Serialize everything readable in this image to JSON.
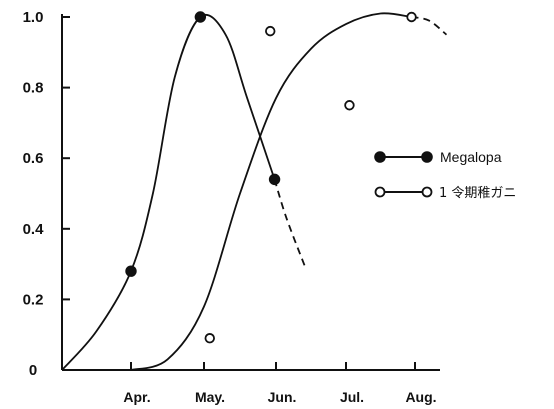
{
  "chart_data": {
    "type": "line",
    "categories": [
      "Apr.",
      "May.",
      "Jun.",
      "Jul.",
      "Aug."
    ],
    "ylim": [
      0,
      1.0
    ],
    "yticks": [
      {
        "value": 0,
        "label": "0"
      },
      {
        "value": 0.2,
        "label": "0.2"
      },
      {
        "value": 0.4,
        "label": "0.4"
      },
      {
        "value": 0.6,
        "label": "0.6"
      },
      {
        "value": 0.8,
        "label": "0.8"
      },
      {
        "value": 1.0,
        "label": "1.0"
      }
    ],
    "grid": false,
    "legend_position": "right",
    "series": [
      {
        "name": "Megalopa",
        "marker": "filled-circle",
        "points": [
          {
            "x": 4.0,
            "y": 0.28
          },
          {
            "x": 4.95,
            "y": 1.0
          },
          {
            "x": 5.98,
            "y": 0.54
          }
        ],
        "curve": [
          {
            "x": 3.0,
            "y": 0.0
          },
          {
            "x": 3.5,
            "y": 0.11
          },
          {
            "x": 4.0,
            "y": 0.28
          },
          {
            "x": 4.3,
            "y": 0.5
          },
          {
            "x": 4.6,
            "y": 0.83
          },
          {
            "x": 4.95,
            "y": 1.0
          },
          {
            "x": 5.3,
            "y": 0.95
          },
          {
            "x": 5.6,
            "y": 0.77
          },
          {
            "x": 5.98,
            "y": 0.54
          }
        ],
        "extrapolated": [
          {
            "x": 5.98,
            "y": 0.54
          },
          {
            "x": 6.15,
            "y": 0.43
          },
          {
            "x": 6.42,
            "y": 0.29
          }
        ]
      },
      {
        "name": "1 令期稚ガニ",
        "marker": "open-circle",
        "points": [
          {
            "x": 5.08,
            "y": 0.09
          },
          {
            "x": 5.92,
            "y": 0.96
          },
          {
            "x": 7.05,
            "y": 0.75
          },
          {
            "x": 7.95,
            "y": 1.0
          }
        ],
        "curve": [
          {
            "x": 4.0,
            "y": 0.0
          },
          {
            "x": 4.5,
            "y": 0.03
          },
          {
            "x": 5.0,
            "y": 0.18
          },
          {
            "x": 5.5,
            "y": 0.5
          },
          {
            "x": 6.0,
            "y": 0.77
          },
          {
            "x": 6.5,
            "y": 0.91
          },
          {
            "x": 7.0,
            "y": 0.98
          },
          {
            "x": 7.5,
            "y": 1.01
          },
          {
            "x": 7.95,
            "y": 1.0
          }
        ],
        "extrapolated": [
          {
            "x": 7.95,
            "y": 1.0
          },
          {
            "x": 8.2,
            "y": 0.99
          },
          {
            "x": 8.45,
            "y": 0.95
          }
        ]
      }
    ]
  }
}
